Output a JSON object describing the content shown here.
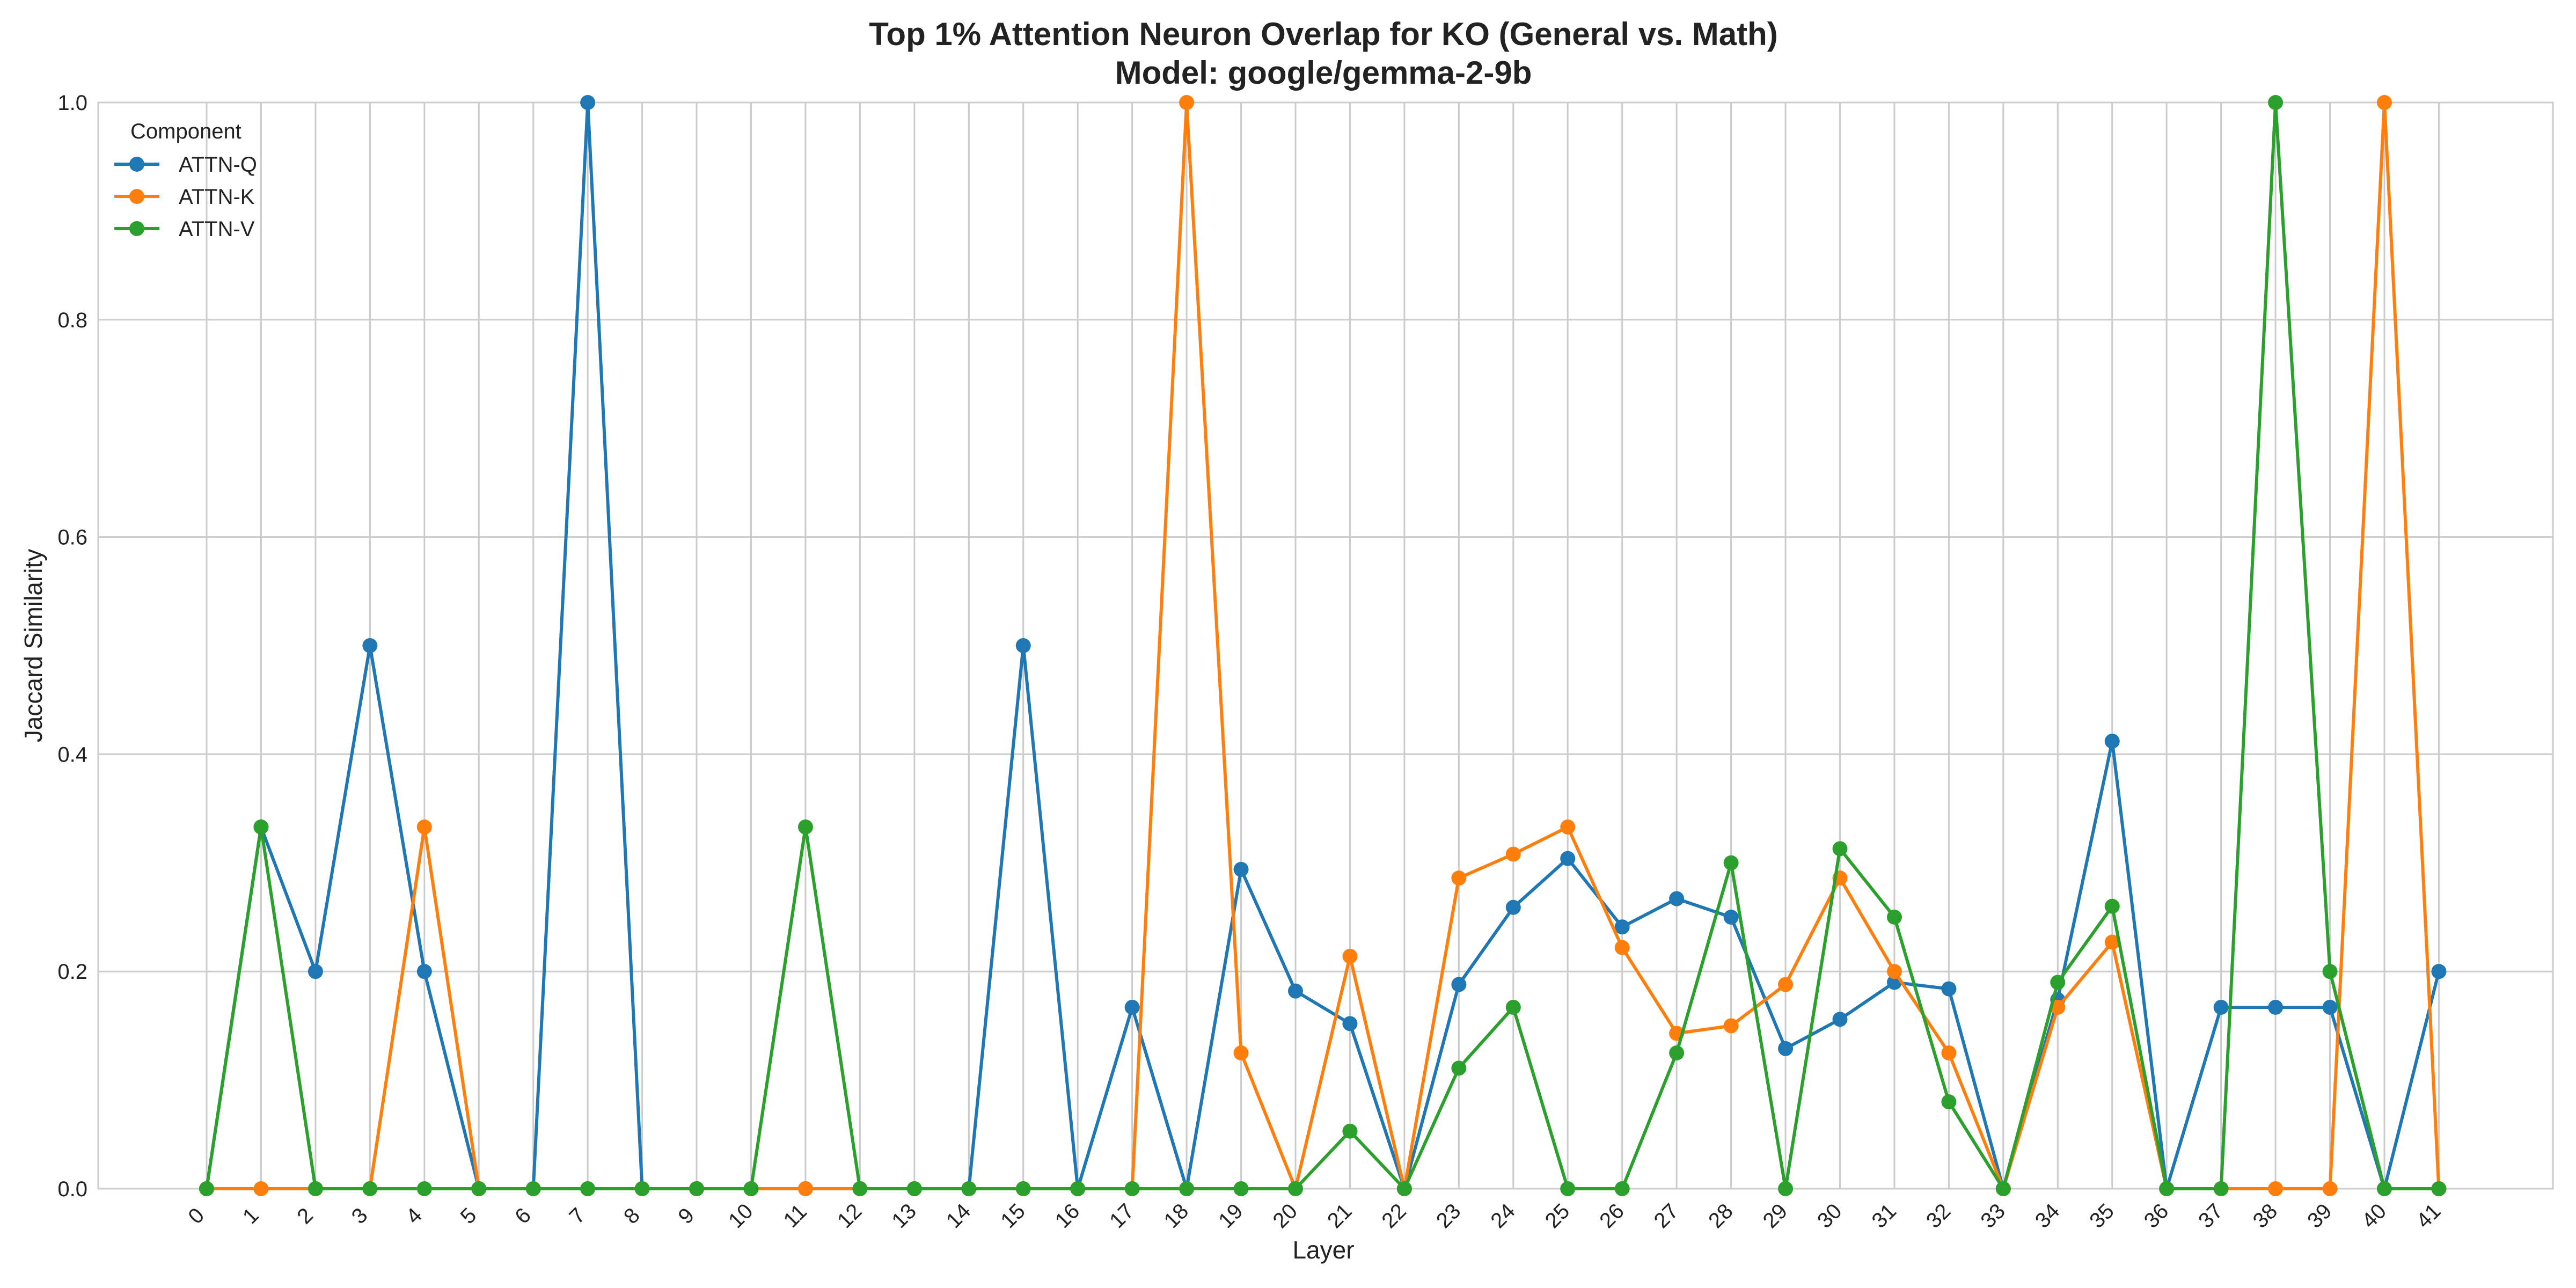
{
  "chart_data": {
    "type": "line",
    "title": "Top 1% Attention Neuron Overlap for KO (General vs. Math)",
    "subtitle": "Model: google/gemma-2-9b",
    "xlabel": "Layer",
    "ylabel": "Jaccard Similarity",
    "ylim": [
      0.0,
      1.0
    ],
    "yticks": [
      "0.0",
      "0.2",
      "0.4",
      "0.6",
      "0.8",
      "1.0"
    ],
    "x": [
      0,
      1,
      2,
      3,
      4,
      5,
      6,
      7,
      8,
      9,
      10,
      11,
      12,
      13,
      14,
      15,
      16,
      17,
      18,
      19,
      20,
      21,
      22,
      23,
      24,
      25,
      26,
      27,
      28,
      29,
      30,
      31,
      32,
      33,
      34,
      35,
      36,
      37,
      38,
      39,
      40,
      41
    ],
    "grid": true,
    "legend_title": "Component",
    "legend_position": "top-left",
    "series": [
      {
        "name": "ATTN-Q",
        "color": "#1f77b4",
        "values": [
          0,
          0.333,
          0.2,
          0.5,
          0.2,
          0,
          0,
          1.0,
          0,
          0,
          0,
          0,
          0,
          0,
          0,
          0.5,
          0,
          0.167,
          0,
          0.294,
          0.182,
          0.152,
          0,
          0.188,
          0.259,
          0.304,
          0.241,
          0.267,
          0.25,
          0.129,
          0.156,
          0.19,
          0.184,
          0,
          0.174,
          0.412,
          0,
          0.167,
          0.167,
          0.167,
          0,
          0.2
        ]
      },
      {
        "name": "ATTN-K",
        "color": "#ff7f0e",
        "values": [
          0,
          0,
          0,
          0,
          0.333,
          0,
          0,
          0,
          0,
          0,
          0,
          0,
          0,
          0,
          0,
          0,
          0,
          0,
          1.0,
          0.125,
          0,
          0.214,
          0,
          0.286,
          0.308,
          0.333,
          0.222,
          0.143,
          0.15,
          0.188,
          0.286,
          0.2,
          0.125,
          0,
          0.167,
          0.227,
          0,
          0,
          0,
          0,
          1.0,
          0
        ]
      },
      {
        "name": "ATTN-V",
        "color": "#2ca02c",
        "values": [
          0,
          0.333,
          0,
          0,
          0,
          0,
          0,
          0,
          0,
          0,
          0,
          0.333,
          0,
          0,
          0,
          0,
          0,
          0,
          0,
          0,
          0,
          0.053,
          0,
          0.111,
          0.167,
          0,
          0,
          0.125,
          0.3,
          0,
          0.313,
          0.25,
          0.08,
          0,
          0.19,
          0.26,
          0,
          0,
          1.0,
          0.2,
          0,
          0
        ]
      }
    ]
  }
}
